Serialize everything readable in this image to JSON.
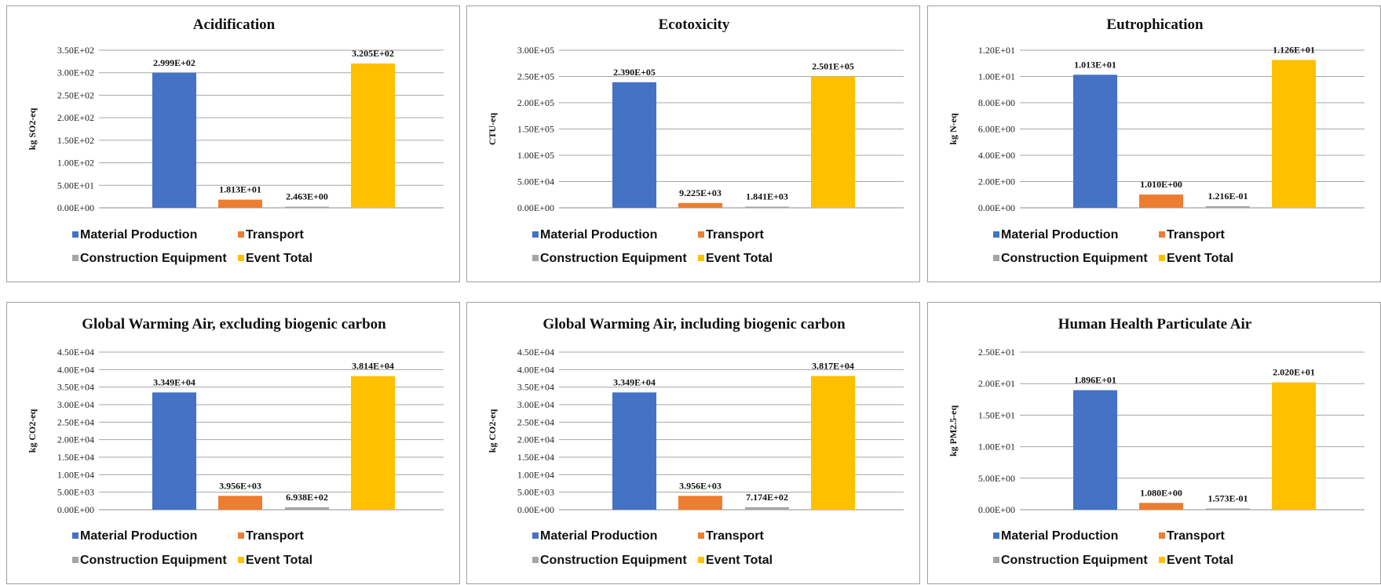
{
  "legend": {
    "items": [
      {
        "label": "Material Production",
        "color": "#4472C4"
      },
      {
        "label": "Transport",
        "color": "#ED7D31"
      },
      {
        "label": "Construction Equipment",
        "color": "#A5A5A5"
      },
      {
        "label": "Event Total",
        "color": "#FFC000"
      }
    ]
  },
  "chart_data": [
    {
      "type": "bar",
      "title": "Acidification",
      "ylabel": "kg SO2-eq",
      "categories": [
        "Material Production",
        "Transport",
        "Construction Equipment",
        "Event Total"
      ],
      "values": [
        299.9,
        18.13,
        2.463,
        320.5
      ],
      "value_labels": [
        "2.999E+02",
        "1.813E+01",
        "2.463E+00",
        "3.205E+02"
      ],
      "yticks": [
        "0.00E+00",
        "5.00E+01",
        "1.00E+02",
        "1.50E+02",
        "2.00E+02",
        "2.50E+02",
        "3.00E+02",
        "3.50E+02"
      ],
      "ylim": [
        0,
        350
      ],
      "grid": true,
      "legend_position": "bottom"
    },
    {
      "type": "bar",
      "title": "Ecotoxicity",
      "ylabel": "CTU-eq",
      "categories": [
        "Material Production",
        "Transport",
        "Construction Equipment",
        "Event Total"
      ],
      "values": [
        239000,
        9225,
        1841,
        250100
      ],
      "value_labels": [
        "2.390E+05",
        "9.225E+03",
        "1.841E+03",
        "2.501E+05"
      ],
      "yticks": [
        "0.00E+00",
        "5.00E+04",
        "1.00E+05",
        "1.50E+05",
        "2.00E+05",
        "2.50E+05",
        "3.00E+05"
      ],
      "ylim": [
        0,
        300000
      ],
      "grid": true,
      "legend_position": "bottom"
    },
    {
      "type": "bar",
      "title": "Eutrophication",
      "ylabel": "kg N-eq",
      "categories": [
        "Material Production",
        "Transport",
        "Construction Equipment",
        "Event Total"
      ],
      "values": [
        10.13,
        1.01,
        0.1216,
        11.26
      ],
      "value_labels": [
        "1.013E+01",
        "1.010E+00",
        "1.216E-01",
        "1.126E+01"
      ],
      "yticks": [
        "0.00E+00",
        "2.00E+00",
        "4.00E+00",
        "6.00E+00",
        "8.00E+00",
        "1.00E+01",
        "1.20E+01"
      ],
      "ylim": [
        0,
        12
      ],
      "grid": true,
      "legend_position": "bottom"
    },
    {
      "type": "bar",
      "title": "Global Warming Air, excluding biogenic carbon",
      "ylabel": "kg CO2-eq",
      "categories": [
        "Material Production",
        "Transport",
        "Construction Equipment",
        "Event Total"
      ],
      "values": [
        33490,
        3956,
        693.8,
        38140
      ],
      "value_labels": [
        "3.349E+04",
        "3.956E+03",
        "6.938E+02",
        "3.814E+04"
      ],
      "yticks": [
        "0.00E+00",
        "5.00E+03",
        "1.00E+04",
        "1.50E+04",
        "2.00E+04",
        "2.50E+04",
        "3.00E+04",
        "3.50E+04",
        "4.00E+04",
        "4.50E+04"
      ],
      "ylim": [
        0,
        45000
      ],
      "grid": true,
      "legend_position": "bottom"
    },
    {
      "type": "bar",
      "title": "Global Warming Air, including biogenic carbon",
      "ylabel": "kg CO2-eq",
      "categories": [
        "Material Production",
        "Transport",
        "Construction Equipment",
        "Event Total"
      ],
      "values": [
        33490,
        3956,
        717.4,
        38170
      ],
      "value_labels": [
        "3.349E+04",
        "3.956E+03",
        "7.174E+02",
        "3.817E+04"
      ],
      "yticks": [
        "0.00E+00",
        "5.00E+03",
        "1.00E+04",
        "1.50E+04",
        "2.00E+04",
        "2.50E+04",
        "3.00E+04",
        "3.50E+04",
        "4.00E+04",
        "4.50E+04"
      ],
      "ylim": [
        0,
        45000
      ],
      "grid": true,
      "legend_position": "bottom"
    },
    {
      "type": "bar",
      "title": "Human Health Particulate Air",
      "ylabel": "kg PM2.5-eq",
      "categories": [
        "Material Production",
        "Transport",
        "Construction Equipment",
        "Event Total"
      ],
      "values": [
        18.96,
        1.08,
        0.1573,
        20.2
      ],
      "value_labels": [
        "1.896E+01",
        "1.080E+00",
        "1.573E-01",
        "2.020E+01"
      ],
      "yticks": [
        "0.00E+00",
        "5.00E+00",
        "1.00E+01",
        "1.50E+01",
        "2.00E+01",
        "2.50E+01"
      ],
      "ylim": [
        0,
        25
      ],
      "grid": true,
      "legend_position": "bottom"
    }
  ]
}
